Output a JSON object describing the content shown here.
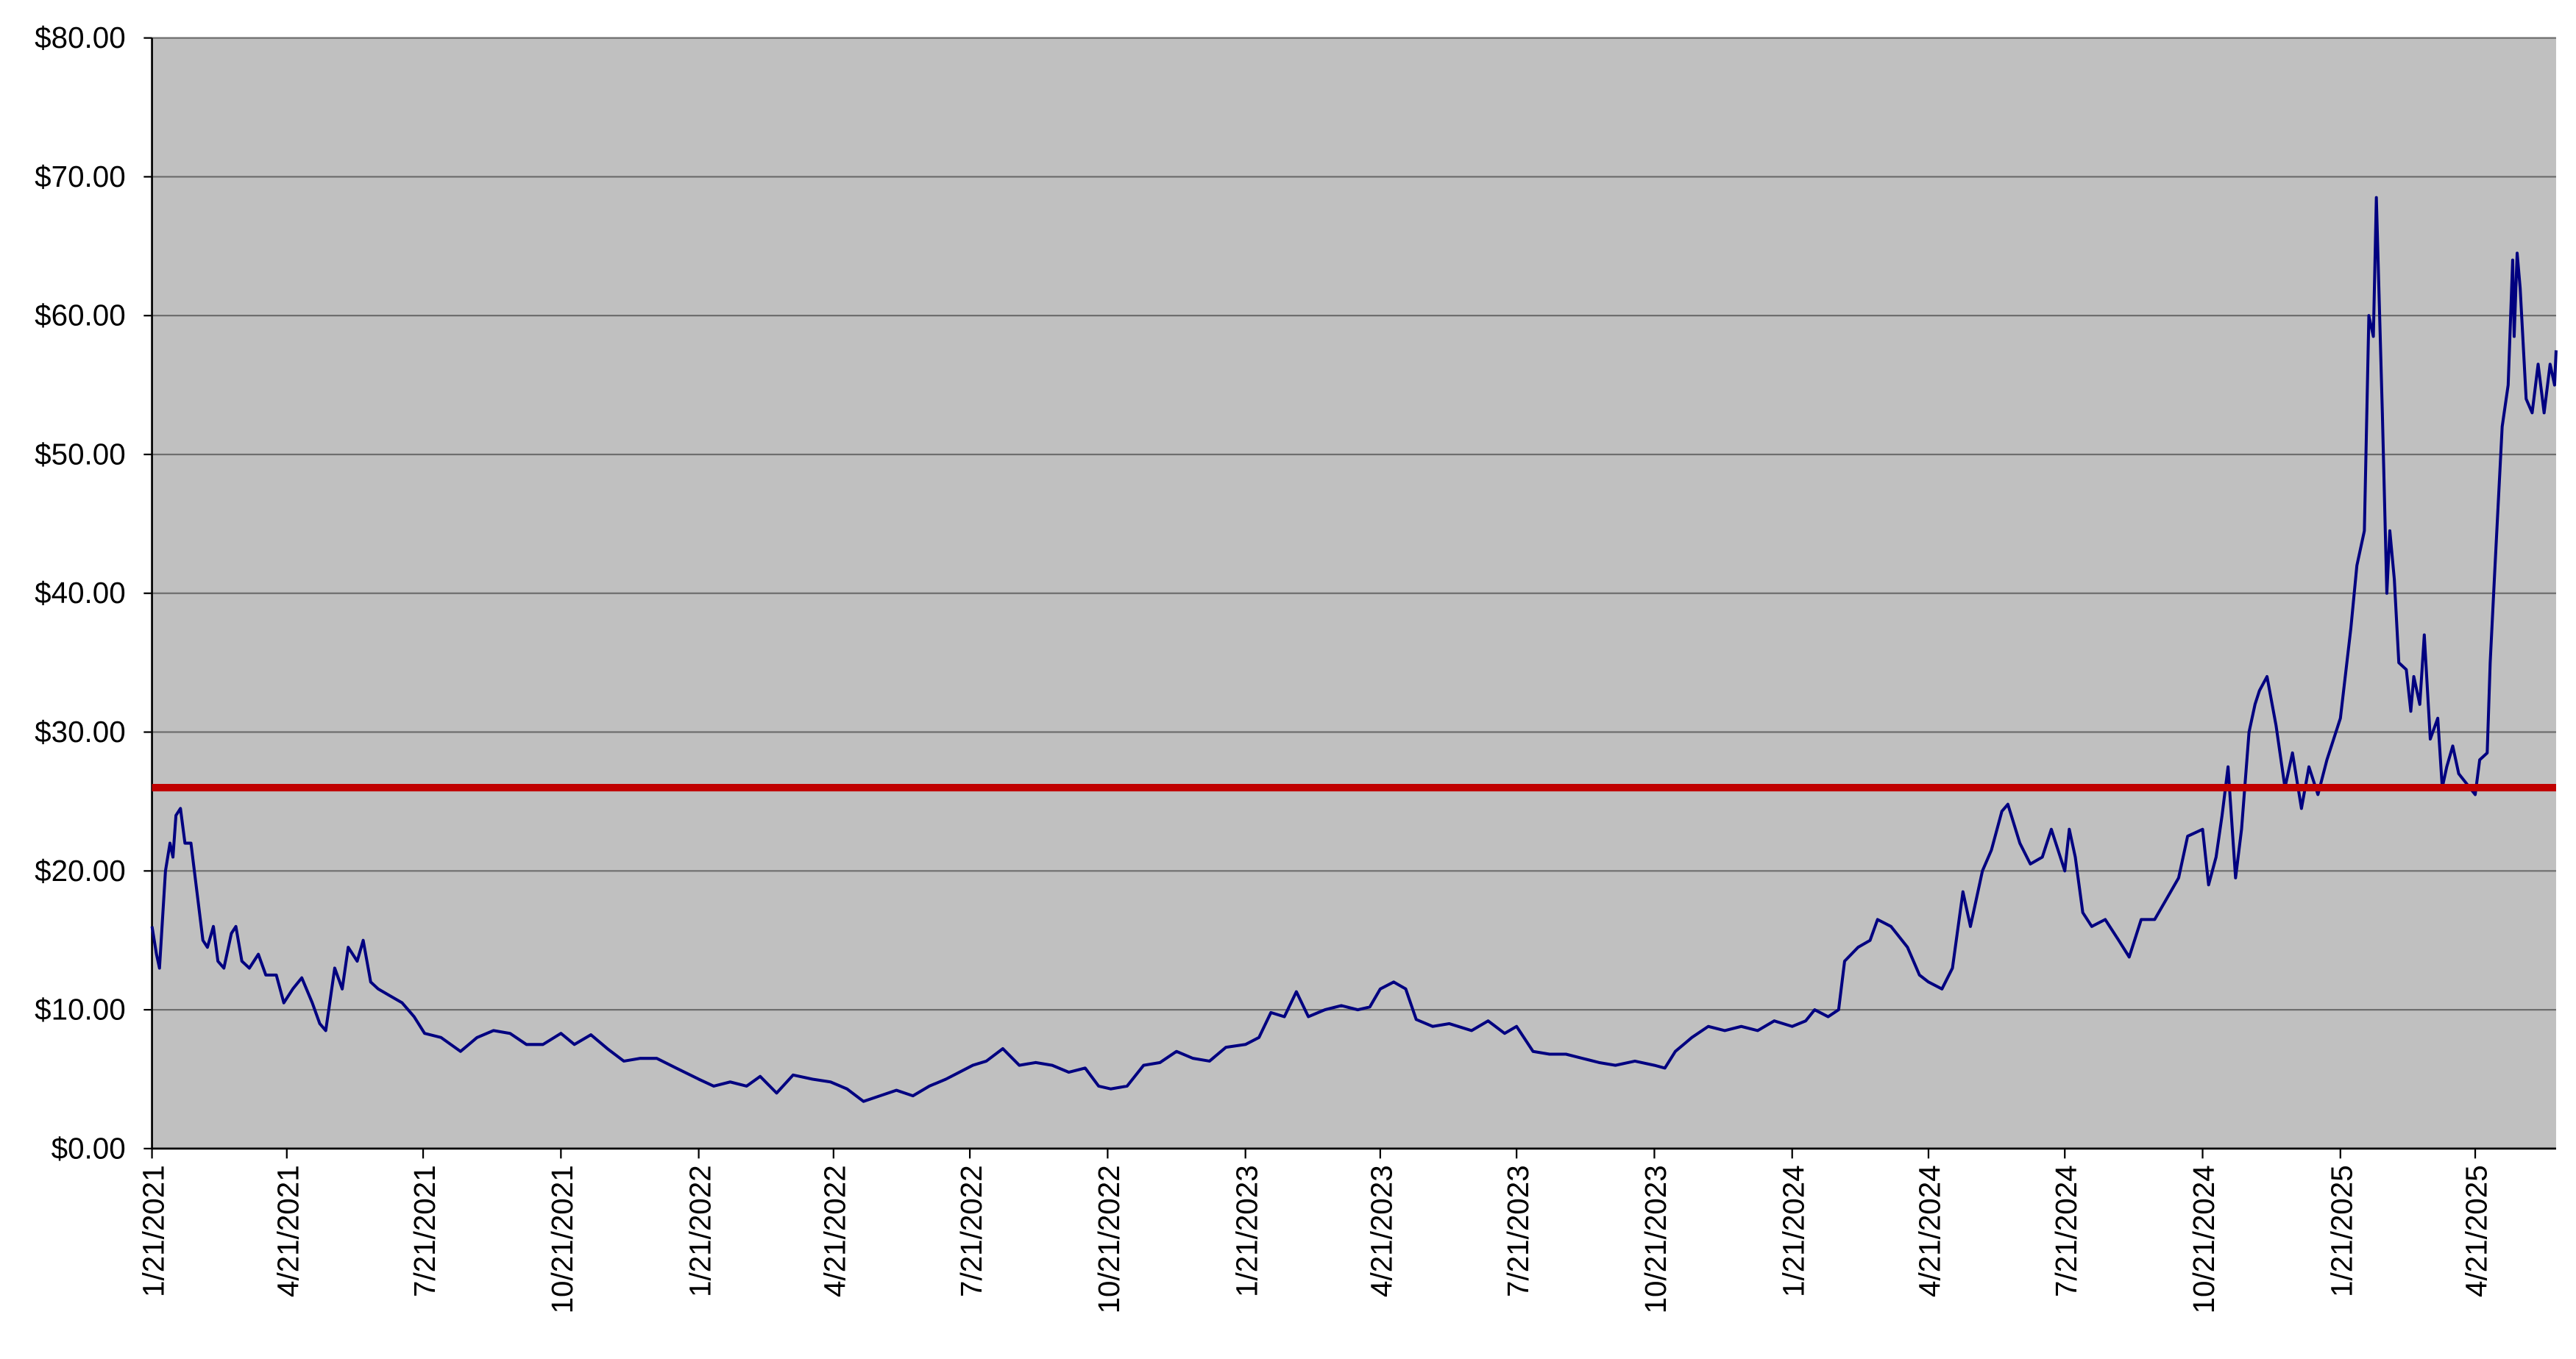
{
  "chart_data": {
    "type": "line",
    "x": [
      "1/21/2021",
      "1/24/2021",
      "1/26/2021",
      "1/30/2021",
      "2/2/2021",
      "2/4/2021",
      "2/6/2021",
      "2/9/2021",
      "2/12/2021",
      "2/16/2021",
      "2/20/2021",
      "2/24/2021",
      "2/27/2021",
      "3/3/2021",
      "3/6/2021",
      "3/10/2021",
      "3/15/2021",
      "3/18/2021",
      "3/22/2021",
      "3/27/2021",
      "4/2/2021",
      "4/7/2021",
      "4/14/2021",
      "4/19/2021",
      "4/25/2021",
      "5/1/2021",
      "5/8/2021",
      "5/13/2021",
      "5/17/2021",
      "5/23/2021",
      "5/28/2021",
      "6/1/2021",
      "6/7/2021",
      "6/11/2021",
      "6/16/2021",
      "6/21/2021",
      "6/29/2021",
      "7/7/2021",
      "7/15/2021",
      "7/22/2021",
      "8/2/2021",
      "8/15/2021",
      "8/26/2021",
      "9/6/2021",
      "9/17/2021",
      "9/28/2021",
      "10/9/2021",
      "10/21/2021",
      "10/30/2021",
      "11/10/2021",
      "11/21/2021",
      "12/2/2021",
      "12/13/2021",
      "12/24/2021",
      "1/6/2022",
      "1/21/2022",
      "1/31/2022",
      "2/11/2022",
      "2/22/2022",
      "3/3/2022",
      "3/14/2022",
      "3/25/2022",
      "4/7/2022",
      "4/19/2022",
      "4/30/2022",
      "5/11/2022",
      "5/22/2022",
      "6/2/2022",
      "6/13/2022",
      "6/24/2022",
      "7/5/2022",
      "7/14/2022",
      "7/23/2022",
      "8/1/2022",
      "8/12/2022",
      "8/23/2022",
      "9/3/2022",
      "9/14/2022",
      "9/25/2022",
      "10/6/2022",
      "10/15/2022",
      "10/23/2022",
      "11/3/2022",
      "11/14/2022",
      "11/25/2022",
      "12/6/2022",
      "12/17/2022",
      "12/28/2022",
      "1/8/2023",
      "1/21/2023",
      "1/30/2023",
      "2/7/2023",
      "2/16/2023",
      "2/24/2023",
      "3/4/2023",
      "3/15/2023",
      "3/26/2023",
      "4/6/2023",
      "4/14/2023",
      "4/21/2023",
      "4/30/2023",
      "5/8/2023",
      "5/15/2023",
      "5/26/2023",
      "6/6/2023",
      "6/21/2023",
      "7/2/2023",
      "7/13/2023",
      "7/21/2023",
      "8/1/2023",
      "8/12/2023",
      "8/23/2023",
      "9/3/2023",
      "9/14/2023",
      "9/25/2023",
      "10/8/2023",
      "10/21/2023",
      "10/28/2023",
      "11/4/2023",
      "11/15/2023",
      "11/26/2023",
      "12/7/2023",
      "12/18/2023",
      "12/29/2023",
      "1/9/2024",
      "1/21/2024",
      "1/30/2024",
      "2/5/2024",
      "2/14/2024",
      "2/21/2024",
      "2/25/2024",
      "3/5/2024",
      "3/13/2024",
      "3/18/2024",
      "3/27/2024",
      "4/7/2024",
      "4/15/2024",
      "4/21/2024",
      "4/30/2024",
      "5/7/2024",
      "5/14/2024",
      "5/19/2024",
      "5/27/2024",
      "6/2/2024",
      "6/9/2024",
      "6/13/2024",
      "6/21/2024",
      "6/28/2024",
      "7/6/2024",
      "7/12/2024",
      "7/21/2024",
      "7/24/2024",
      "7/28/2024",
      "8/2/2024",
      "8/8/2024",
      "8/17/2024",
      "8/26/2024",
      "9/2/2024",
      "9/10/2024",
      "9/19/2024",
      "9/27/2024",
      "10/5/2024",
      "10/11/2024",
      "10/21/2024",
      "10/25/2024",
      "10/30/2024",
      "11/3/2024",
      "11/7/2024",
      "11/12/2024",
      "11/16/2024",
      "11/21/2024",
      "11/25/2024",
      "11/28/2024",
      "12/3/2024",
      "12/9/2024",
      "12/15/2024",
      "12/20/2024",
      "12/26/2024",
      "12/31/2024",
      "1/6/2025",
      "1/12/2025",
      "1/21/2025",
      "1/28/2025",
      "2/1/2025",
      "2/6/2025",
      "2/9/2025",
      "2/12/2025",
      "2/14/2025",
      "2/18/2025",
      "2/21/2025",
      "2/23/2025",
      "2/26/2025",
      "3/1/2025",
      "3/6/2025",
      "3/9/2025",
      "3/11/2025",
      "3/15/2025",
      "3/18/2025",
      "3/22/2025",
      "3/27/2025",
      "3/30/2025",
      "4/2/2025",
      "4/6/2025",
      "4/10/2025",
      "4/21/2025",
      "4/24/2025",
      "4/29/2025",
      "5/1/2025",
      "5/4/2025",
      "5/9/2025",
      "5/13/2025",
      "5/16/2025",
      "5/17/2025",
      "5/19/2025",
      "5/21/2025",
      "5/25/2025",
      "5/29/2025",
      "6/2/2025",
      "6/6/2025",
      "6/10/2025",
      "6/13/2025",
      "6/14/2025"
    ],
    "series": [
      {
        "color": "#000080",
        "values": [
          16,
          14,
          13,
          20,
          22,
          21,
          24,
          24.5,
          22,
          22,
          18.5,
          15,
          14.5,
          16,
          13.5,
          13,
          15.5,
          16,
          13.5,
          13,
          14,
          12.5,
          12.5,
          10.5,
          11.5,
          12.3,
          10.5,
          9,
          8.5,
          13,
          11.5,
          14.5,
          13.5,
          15,
          12,
          11.5,
          11,
          10.5,
          9.5,
          8.3,
          8,
          7,
          8,
          8.5,
          8.3,
          7.5,
          7.5,
          8.3,
          7.5,
          8.2,
          7.2,
          6.3,
          6.5,
          6.5,
          5.8,
          5,
          4.5,
          4.8,
          4.5,
          5.2,
          4,
          5.3,
          5,
          4.8,
          4.3,
          3.4,
          3.8,
          4.2,
          3.8,
          4.5,
          5,
          5.5,
          6,
          6.3,
          7.2,
          6,
          6.2,
          6,
          5.5,
          5.8,
          4.5,
          4.3,
          4.5,
          6,
          6.2,
          7,
          6.5,
          6.3,
          7.3,
          7.5,
          8,
          9.8,
          9.5,
          11.3,
          9.5,
          10,
          10.3,
          10,
          10.2,
          11.5,
          12,
          11.5,
          9.3,
          8.8,
          9,
          8.5,
          9.2,
          8.3,
          8.8,
          7,
          6.8,
          6.8,
          6.5,
          6.2,
          6,
          6.3,
          6,
          5.8,
          7,
          8,
          8.8,
          8.5,
          8.8,
          8.5,
          9.2,
          8.8,
          9.2,
          10,
          9.5,
          10,
          13.5,
          14.5,
          15,
          16.5,
          16,
          14.5,
          12.5,
          12,
          11.5,
          13,
          18.5,
          16,
          20,
          21.5,
          24.3,
          24.8,
          22,
          20.5,
          21,
          23,
          20,
          23,
          21,
          17,
          16,
          16.5,
          15,
          13.8,
          16.5,
          16.5,
          18,
          19.5,
          22.5,
          23,
          19,
          21,
          24,
          27.5,
          19.5,
          23,
          30,
          32,
          33,
          34,
          30.5,
          26,
          28.5,
          24.5,
          27.5,
          25.5,
          28,
          31,
          37.5,
          42,
          44.5,
          60,
          58.5,
          68.5,
          53,
          40,
          44.5,
          41,
          35,
          34.5,
          31.5,
          34,
          32,
          37,
          29.5,
          31,
          26,
          27.5,
          29,
          27,
          25.5,
          28,
          28.5,
          35,
          41.5,
          52,
          55,
          64,
          58.5,
          64.5,
          62,
          54,
          53,
          56.5,
          53,
          56.5,
          55,
          57.5
        ]
      }
    ],
    "xlim": [
      "1/21/2021",
      "6/14/2025"
    ],
    "xticks": [
      "1/21/2021",
      "4/21/2021",
      "7/21/2021",
      "10/21/2021",
      "1/21/2022",
      "4/21/2022",
      "7/21/2022",
      "10/21/2022",
      "1/21/2023",
      "4/21/2023",
      "7/21/2023",
      "10/21/2023",
      "1/21/2024",
      "4/21/2024",
      "7/21/2024",
      "10/21/2024",
      "1/21/2025",
      "4/21/2025"
    ],
    "ylim": [
      0,
      80
    ],
    "yticks": [
      {
        "value": 0,
        "label": "$0.00"
      },
      {
        "value": 10,
        "label": "$10.00"
      },
      {
        "value": 20,
        "label": "$20.00"
      },
      {
        "value": 30,
        "label": "$30.00"
      },
      {
        "value": 40,
        "label": "$40.00"
      },
      {
        "value": 50,
        "label": "$50.00"
      },
      {
        "value": 60,
        "label": "$60.00"
      },
      {
        "value": 70,
        "label": "$70.00"
      },
      {
        "value": 80,
        "label": "$80.00"
      }
    ],
    "grid": true,
    "background": "#c0c0c0",
    "reference_line": {
      "value": 26,
      "color": "#c00000"
    }
  }
}
